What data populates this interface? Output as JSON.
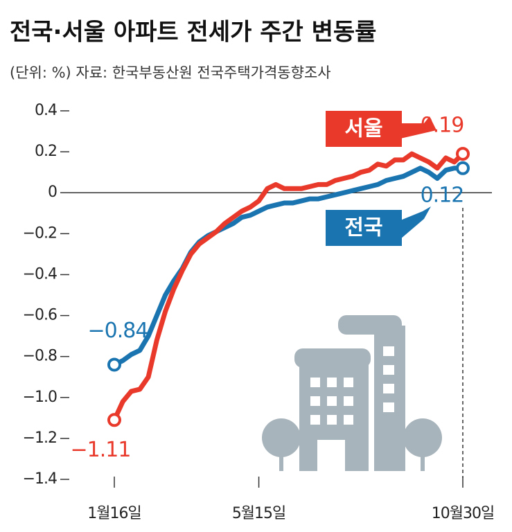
{
  "chart_data": {
    "type": "line",
    "title": "전국·서울 아파트 전세가 주간 변동률",
    "subtitle": "(단위: %) 자료: 한국부동산원 전국주택가격동향조사",
    "categories": [
      "1월16일",
      null,
      null,
      null,
      null,
      null,
      null,
      null,
      null,
      null,
      null,
      null,
      null,
      null,
      null,
      null,
      null,
      "5월15일",
      null,
      null,
      null,
      null,
      null,
      null,
      null,
      null,
      null,
      null,
      null,
      null,
      null,
      null,
      null,
      null,
      null,
      null,
      null,
      null,
      null,
      null,
      null,
      "10월30일"
    ],
    "series": [
      {
        "name": "서울",
        "color": "#e8392b",
        "values": [
          -1.11,
          -1.02,
          -0.97,
          -0.96,
          -0.9,
          -0.72,
          -0.58,
          -0.47,
          -0.38,
          -0.3,
          -0.25,
          -0.22,
          -0.19,
          -0.15,
          -0.12,
          -0.09,
          -0.07,
          -0.04,
          0.02,
          0.04,
          0.02,
          0.02,
          0.02,
          0.03,
          0.04,
          0.04,
          0.06,
          0.07,
          0.08,
          0.1,
          0.11,
          0.14,
          0.13,
          0.16,
          0.16,
          0.19,
          0.17,
          0.15,
          0.12,
          0.17,
          0.15,
          0.19
        ],
        "value_labels": [
          "−1.11",
          null,
          null,
          null,
          null,
          null,
          null,
          null,
          null,
          null,
          null,
          null,
          null,
          null,
          null,
          null,
          null,
          null,
          null,
          null,
          null,
          null,
          null,
          null,
          null,
          null,
          null,
          null,
          null,
          null,
          null,
          null,
          null,
          null,
          null,
          null,
          null,
          null,
          null,
          null,
          null,
          "0.19"
        ]
      },
      {
        "name": "전국",
        "color": "#1a74b0",
        "values": [
          -0.84,
          -0.82,
          -0.79,
          -0.77,
          -0.7,
          -0.6,
          -0.5,
          -0.43,
          -0.37,
          -0.29,
          -0.24,
          -0.21,
          -0.19,
          -0.17,
          -0.15,
          -0.12,
          -0.11,
          -0.09,
          -0.07,
          -0.06,
          -0.05,
          -0.05,
          -0.04,
          -0.03,
          -0.03,
          -0.02,
          -0.01,
          0.0,
          0.01,
          0.02,
          0.03,
          0.04,
          0.06,
          0.07,
          0.08,
          0.1,
          0.12,
          0.1,
          0.07,
          0.11,
          0.12,
          0.12
        ],
        "value_labels": [
          "−0.84",
          null,
          null,
          null,
          null,
          null,
          null,
          null,
          null,
          null,
          null,
          null,
          null,
          null,
          null,
          null,
          null,
          null,
          null,
          null,
          null,
          null,
          null,
          null,
          null,
          null,
          null,
          null,
          null,
          null,
          null,
          null,
          null,
          null,
          null,
          null,
          null,
          null,
          null,
          null,
          null,
          "0.12"
        ]
      }
    ],
    "ylim": [
      -1.4,
      0.4
    ],
    "yticks": [
      0.4,
      0.2,
      0,
      {
        "value": -0.2,
        "label": "−0.2"
      },
      {
        "value": -0.4,
        "label": "−0.4"
      },
      {
        "value": -0.6,
        "label": "−0.6"
      },
      {
        "value": -0.8,
        "label": "−0.8"
      },
      {
        "value": -1.0,
        "label": "−1.0"
      },
      {
        "value": -1.2,
        "label": "−1.2"
      },
      {
        "value": -1.4,
        "label": "−1.4"
      }
    ]
  }
}
